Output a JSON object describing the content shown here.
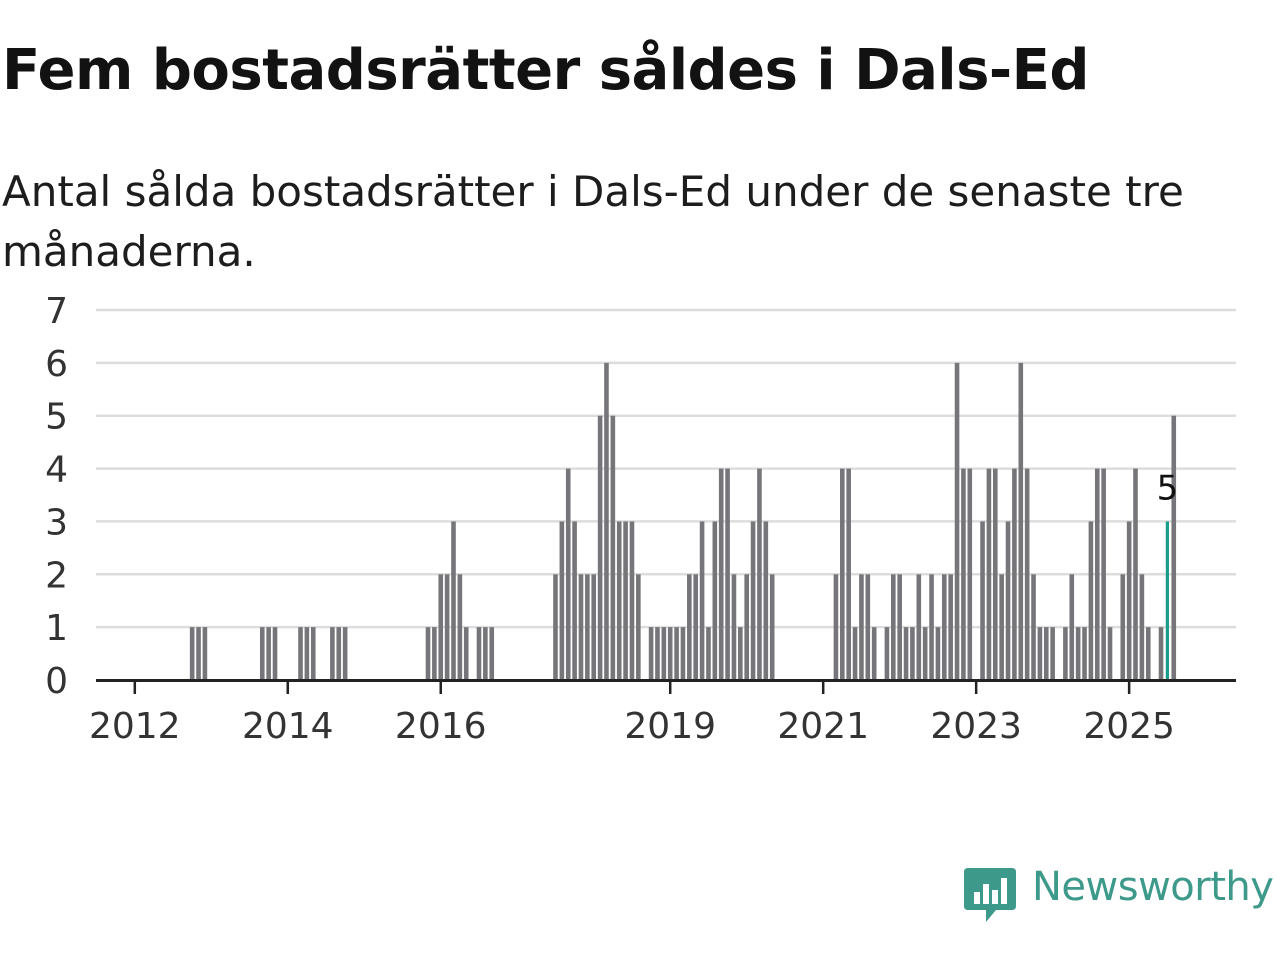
{
  "title": "Fem bostadsrätter såldes i Dals-Ed",
  "subtitle": "Antal sålda bostadsrätter i Dals-Ed under de senaste tre månaderna.",
  "brand": {
    "name": "Newsworthy",
    "color": "#3d9a8a",
    "icon": "newsworthy-logo-icon"
  },
  "colors": {
    "bar": "#76767a",
    "highlight": "#1a9c8c",
    "grid": "#dddddd",
    "axis": "#222222"
  },
  "chart_data": {
    "type": "bar",
    "x_unit": "month",
    "start": "2011-09",
    "ylim": [
      0,
      7
    ],
    "yticks": [
      0,
      1,
      2,
      3,
      4,
      5,
      6,
      7
    ],
    "xticks": [
      "2012",
      "2014",
      "2016",
      "2019",
      "2021",
      "2023",
      "2025"
    ],
    "grid": true,
    "annotation": {
      "label": "5",
      "index": 166
    },
    "values": [
      0,
      0,
      0,
      0,
      0,
      0,
      0,
      0,
      0,
      0,
      0,
      0,
      0,
      1,
      1,
      1,
      0,
      0,
      0,
      0,
      0,
      0,
      0,
      0,
      1,
      1,
      1,
      0,
      0,
      0,
      1,
      1,
      1,
      0,
      0,
      1,
      1,
      1,
      0,
      0,
      0,
      0,
      0,
      0,
      0,
      0,
      0,
      0,
      0,
      0,
      1,
      1,
      2,
      2,
      3,
      2,
      1,
      0,
      1,
      1,
      1,
      0,
      0,
      0,
      0,
      0,
      0,
      0,
      0,
      0,
      2,
      3,
      4,
      3,
      2,
      2,
      2,
      5,
      6,
      5,
      3,
      3,
      3,
      2,
      0,
      1,
      1,
      1,
      1,
      1,
      1,
      2,
      2,
      3,
      1,
      3,
      4,
      4,
      2,
      1,
      2,
      3,
      4,
      3,
      2,
      0,
      0,
      0,
      0,
      0,
      0,
      0,
      0,
      0,
      2,
      4,
      4,
      1,
      2,
      2,
      1,
      0,
      1,
      2,
      2,
      1,
      1,
      2,
      1,
      2,
      1,
      2,
      2,
      6,
      4,
      4,
      0,
      3,
      4,
      4,
      2,
      3,
      4,
      6,
      4,
      2,
      1,
      1,
      1,
      0,
      1,
      2,
      1,
      1,
      3,
      4,
      4,
      1,
      0,
      2,
      3,
      4,
      2,
      1,
      0,
      1,
      3,
      5
    ]
  }
}
